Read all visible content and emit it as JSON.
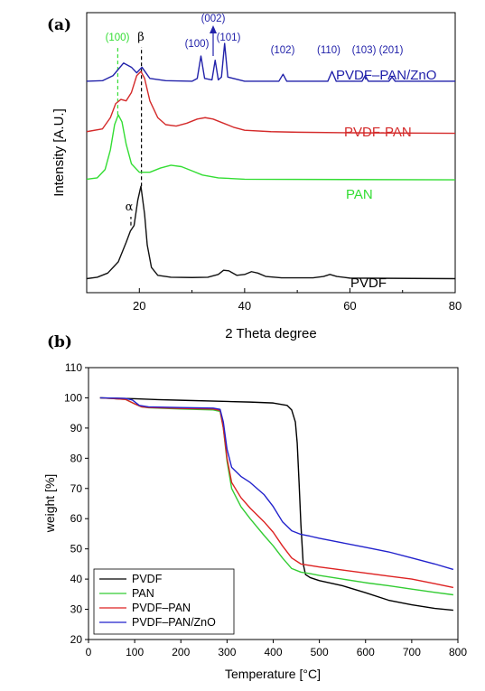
{
  "panel_a": {
    "panel_label": "(a)",
    "chart_data": {
      "type": "line",
      "xlabel": "2 Theta degree",
      "ylabel": "Intensity [A.U.]",
      "xlim": [
        10,
        80
      ],
      "xticks": [
        "20",
        "40",
        "60",
        "80"
      ],
      "y_tick_labels": false,
      "series": [
        {
          "name": "PVDF-PAN/ZnO",
          "color": "#2222aa",
          "offset": 0.745,
          "points": [
            [
              10,
              0.01
            ],
            [
              13,
              0.012
            ],
            [
              15,
              0.03
            ],
            [
              17,
              0.075
            ],
            [
              18.5,
              0.06
            ],
            [
              19.5,
              0.04
            ],
            [
              20.5,
              0.06
            ],
            [
              22,
              0.02
            ],
            [
              25,
              0.012
            ],
            [
              30,
              0.01
            ],
            [
              31,
              0.02
            ],
            [
              31.7,
              0.1
            ],
            [
              32.4,
              0.02
            ],
            [
              33.8,
              0.015
            ],
            [
              34.4,
              0.085
            ],
            [
              35,
              0.015
            ],
            [
              35.6,
              0.025
            ],
            [
              36.2,
              0.145
            ],
            [
              36.8,
              0.025
            ],
            [
              40,
              0.01
            ],
            [
              46.5,
              0.01
            ],
            [
              47.3,
              0.035
            ],
            [
              48,
              0.01
            ],
            [
              55.8,
              0.01
            ],
            [
              56.6,
              0.045
            ],
            [
              57.4,
              0.01
            ],
            [
              62.3,
              0.01
            ],
            [
              62.9,
              0.03
            ],
            [
              63.5,
              0.01
            ],
            [
              67.4,
              0.01
            ],
            [
              68,
              0.025
            ],
            [
              68.6,
              0.01
            ],
            [
              80,
              0.01
            ]
          ]
        },
        {
          "name": "PVDF-PAN",
          "color": "#d42a2a",
          "offset": 0.565,
          "points": [
            [
              10,
              0.01
            ],
            [
              13,
              0.02
            ],
            [
              14.5,
              0.06
            ],
            [
              15.5,
              0.11
            ],
            [
              16.5,
              0.125
            ],
            [
              17.5,
              0.12
            ],
            [
              18.5,
              0.15
            ],
            [
              19.5,
              0.21
            ],
            [
              20.3,
              0.225
            ],
            [
              21,
              0.2
            ],
            [
              22,
              0.12
            ],
            [
              23.5,
              0.06
            ],
            [
              25,
              0.035
            ],
            [
              27,
              0.03
            ],
            [
              29,
              0.04
            ],
            [
              31,
              0.055
            ],
            [
              32.5,
              0.06
            ],
            [
              34,
              0.055
            ],
            [
              36,
              0.04
            ],
            [
              38,
              0.025
            ],
            [
              40,
              0.015
            ],
            [
              45,
              0.01
            ],
            [
              50,
              0.008
            ],
            [
              60,
              0.006
            ],
            [
              80,
              0.004
            ]
          ]
        },
        {
          "name": "PAN",
          "color": "#33dd33",
          "offset": 0.4,
          "points": [
            [
              10,
              0.005
            ],
            [
              12,
              0.01
            ],
            [
              13.5,
              0.04
            ],
            [
              14.5,
              0.11
            ],
            [
              15.3,
              0.2
            ],
            [
              16,
              0.235
            ],
            [
              16.7,
              0.21
            ],
            [
              17.5,
              0.13
            ],
            [
              18.5,
              0.06
            ],
            [
              20,
              0.03
            ],
            [
              22,
              0.03
            ],
            [
              24,
              0.045
            ],
            [
              26,
              0.055
            ],
            [
              28,
              0.05
            ],
            [
              30,
              0.035
            ],
            [
              32,
              0.02
            ],
            [
              35,
              0.01
            ],
            [
              40,
              0.005
            ],
            [
              80,
              0.003
            ]
          ]
        },
        {
          "name": "PVDF",
          "color": "#111111",
          "offset": 0.05,
          "points": [
            [
              10,
              0.0
            ],
            [
              12,
              0.005
            ],
            [
              14,
              0.02
            ],
            [
              16,
              0.06
            ],
            [
              17.5,
              0.13
            ],
            [
              18.3,
              0.17
            ],
            [
              19,
              0.19
            ],
            [
              19.7,
              0.28
            ],
            [
              20.3,
              0.33
            ],
            [
              21,
              0.23
            ],
            [
              21.5,
              0.12
            ],
            [
              22.3,
              0.04
            ],
            [
              23.5,
              0.012
            ],
            [
              26,
              0.005
            ],
            [
              30,
              0.004
            ],
            [
              33,
              0.005
            ],
            [
              35,
              0.015
            ],
            [
              36,
              0.03
            ],
            [
              37,
              0.028
            ],
            [
              38.5,
              0.012
            ],
            [
              40,
              0.015
            ],
            [
              41.3,
              0.025
            ],
            [
              42.5,
              0.02
            ],
            [
              44,
              0.008
            ],
            [
              47,
              0.003
            ],
            [
              53,
              0.003
            ],
            [
              55,
              0.008
            ],
            [
              56.2,
              0.015
            ],
            [
              57.5,
              0.008
            ],
            [
              60,
              0.002
            ],
            [
              80,
              0.0
            ]
          ]
        }
      ],
      "series_labels": [
        "PVDF–PAN/ZnO",
        "PVDF-PAN",
        "PAN",
        "PVDF"
      ],
      "peak_labels": [
        "(100)",
        "(002)",
        "(101)",
        "(100)",
        "(102)",
        "(110)",
        "(103)",
        "(201)"
      ],
      "greek_labels": {
        "alpha": "α",
        "beta": "β"
      },
      "reference_lines_deg": [
        15.9,
        20.4,
        18.4
      ],
      "colors": {
        "zno": "#2222aa",
        "pvdf_pan": "#d42a2a",
        "pan": "#33dd33",
        "pvdf": "#111111"
      }
    }
  },
  "panel_b": {
    "panel_label": "(b)",
    "chart_data": {
      "type": "line",
      "xlabel": "Temperature [°C]",
      "ylabel": "weight [%]",
      "xlim": [
        0,
        800
      ],
      "ylim": [
        20,
        110
      ],
      "xticks": [
        "0",
        "100",
        "200",
        "300",
        "400",
        "500",
        "600",
        "700",
        "800"
      ],
      "yticks": [
        "20",
        "30",
        "40",
        "50",
        "60",
        "70",
        "80",
        "90",
        "100",
        "110"
      ],
      "legend": {
        "position": "bottom-left",
        "entries": [
          "PVDF",
          "PAN",
          "PVDF–PAN",
          "PVDF–PAN/ZnO"
        ]
      },
      "series": [
        {
          "name": "PVDF",
          "color": "#000000",
          "points": [
            [
              25,
              100
            ],
            [
              100,
              99.7
            ],
            [
              150,
              99.4
            ],
            [
              200,
              99.2
            ],
            [
              300,
              98.8
            ],
            [
              350,
              98.6
            ],
            [
              400,
              98.3
            ],
            [
              430,
              97.5
            ],
            [
              440,
              96
            ],
            [
              448,
              92
            ],
            [
              452,
              85
            ],
            [
              456,
              72
            ],
            [
              460,
              58
            ],
            [
              465,
              45
            ],
            [
              470,
              41.5
            ],
            [
              480,
              40.5
            ],
            [
              500,
              39.5
            ],
            [
              550,
              37.8
            ],
            [
              600,
              35.5
            ],
            [
              650,
              33
            ],
            [
              700,
              31.5
            ],
            [
              750,
              30.3
            ],
            [
              790,
              29.7
            ]
          ]
        },
        {
          "name": "PAN",
          "color": "#33cc33",
          "points": [
            [
              25,
              100
            ],
            [
              80,
              99.5
            ],
            [
              100,
              98
            ],
            [
              115,
              97
            ],
            [
              130,
              96.7
            ],
            [
              200,
              96.3
            ],
            [
              270,
              96
            ],
            [
              285,
              95.5
            ],
            [
              292,
              90
            ],
            [
              300,
              79
            ],
            [
              310,
              70
            ],
            [
              330,
              64
            ],
            [
              350,
              60
            ],
            [
              380,
              54.5
            ],
            [
              400,
              51
            ],
            [
              420,
              47
            ],
            [
              440,
              43.5
            ],
            [
              460,
              42.3
            ],
            [
              480,
              41.8
            ],
            [
              500,
              41.2
            ],
            [
              550,
              40
            ],
            [
              600,
              38.8
            ],
            [
              650,
              37.8
            ],
            [
              700,
              36.7
            ],
            [
              750,
              35.6
            ],
            [
              790,
              34.8
            ]
          ]
        },
        {
          "name": "PVDF-PAN",
          "color": "#dd2222",
          "points": [
            [
              25,
              100
            ],
            [
              80,
              99.5
            ],
            [
              100,
              98
            ],
            [
              115,
              97
            ],
            [
              130,
              96.8
            ],
            [
              200,
              96.5
            ],
            [
              270,
              96.3
            ],
            [
              285,
              95.8
            ],
            [
              292,
              90
            ],
            [
              300,
              80
            ],
            [
              310,
              72
            ],
            [
              330,
              67
            ],
            [
              350,
              63.5
            ],
            [
              380,
              59
            ],
            [
              400,
              55.5
            ],
            [
              420,
              51
            ],
            [
              440,
              47
            ],
            [
              460,
              45
            ],
            [
              480,
              44.5
            ],
            [
              500,
              44
            ],
            [
              550,
              43
            ],
            [
              600,
              42
            ],
            [
              650,
              41
            ],
            [
              700,
              40
            ],
            [
              750,
              38.5
            ],
            [
              790,
              37.2
            ]
          ]
        },
        {
          "name": "PVDF-PAN/ZnO",
          "color": "#2222cc",
          "points": [
            [
              25,
              100
            ],
            [
              80,
              99.8
            ],
            [
              95,
              99.3
            ],
            [
              110,
              97.5
            ],
            [
              130,
              97
            ],
            [
              200,
              96.8
            ],
            [
              270,
              96.6
            ],
            [
              285,
              96.2
            ],
            [
              292,
              92
            ],
            [
              300,
              83
            ],
            [
              310,
              77
            ],
            [
              330,
              74
            ],
            [
              350,
              72
            ],
            [
              380,
              68
            ],
            [
              400,
              64
            ],
            [
              420,
              59
            ],
            [
              440,
              56
            ],
            [
              460,
              54.8
            ],
            [
              480,
              54.2
            ],
            [
              500,
              53.5
            ],
            [
              550,
              52
            ],
            [
              600,
              50.5
            ],
            [
              650,
              49
            ],
            [
              700,
              47
            ],
            [
              750,
              45
            ],
            [
              790,
              43.2
            ]
          ]
        }
      ]
    }
  }
}
